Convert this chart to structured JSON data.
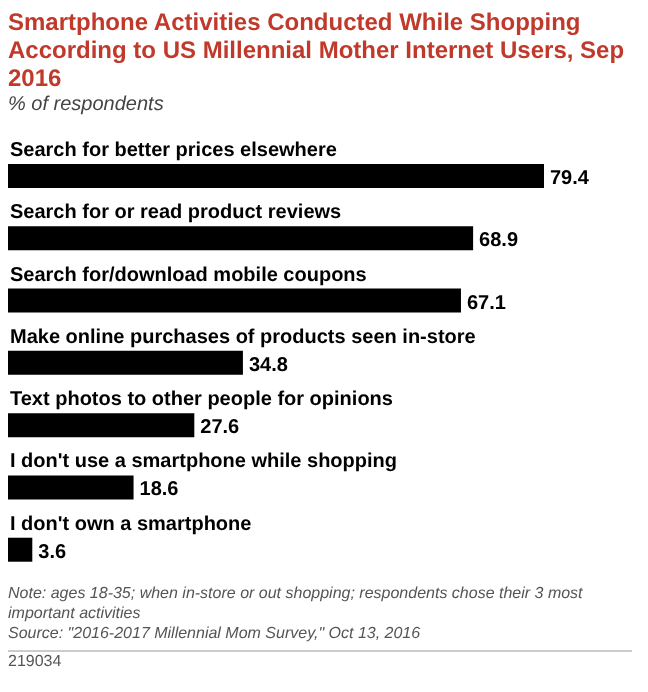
{
  "chart_data": {
    "type": "bar",
    "orientation": "horizontal",
    "title": "Smartphone Activities Conducted While Shopping According to US Millennial Mother Internet Users, Sep 2016",
    "subtitle": "% of respondents",
    "categories": [
      "Search for better prices elsewhere",
      "Search for or read product reviews",
      "Search for/download mobile coupons",
      "Make online purchases of products seen in-store",
      "Text photos to other people for opinions",
      "I don't use a smartphone while shopping",
      "I don't own a smartphone"
    ],
    "values": [
      79.4,
      68.9,
      67.1,
      34.8,
      27.6,
      18.6,
      3.6
    ],
    "color": "#000000",
    "data_labels": true,
    "annotations": [
      "Note: ages 18-35; when in-store or out shopping; respondents chose their 3 most important activities",
      "Source: \"2016-2017 Millennial Mom Survey,\" Oct 13, 2016",
      "219034"
    ]
  }
}
